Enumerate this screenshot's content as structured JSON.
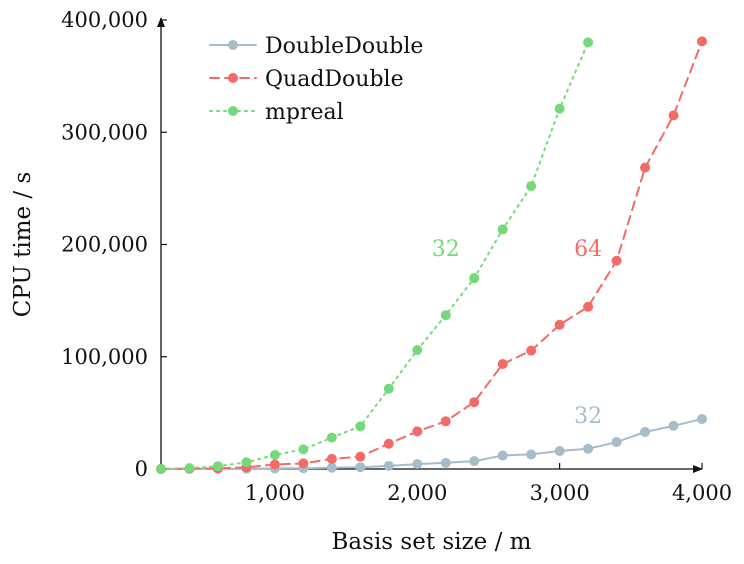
{
  "chart_data": {
    "type": "line",
    "title": "",
    "xlabel": "Basis set size / m",
    "ylabel": "CPU time / s",
    "xlim": [
      200,
      4000
    ],
    "ylim": [
      0,
      400000
    ],
    "x_ticks": [
      1000,
      2000,
      3000,
      4000
    ],
    "x_tick_labels": [
      "1,000",
      "2,000",
      "3,000",
      "4,000"
    ],
    "y_ticks": [
      0,
      100000,
      200000,
      300000,
      400000
    ],
    "y_tick_labels": [
      "0",
      "100,000",
      "200,000",
      "300,000",
      "400,000"
    ],
    "grid": false,
    "legend_position": "top-left",
    "series": [
      {
        "name": "DoubleDouble",
        "color": "#a6bdc9",
        "line_style": "solid",
        "x": [
          200,
          400,
          600,
          800,
          1000,
          1200,
          1400,
          1600,
          1800,
          2000,
          2200,
          2400,
          2600,
          2800,
          3000,
          3200,
          3400,
          3600,
          3800,
          4000
        ],
        "y": [
          0,
          100,
          200,
          300,
          500,
          700,
          1200,
          1600,
          2800,
          4400,
          5500,
          7000,
          12000,
          13000,
          16000,
          18000,
          24000,
          33000,
          38500,
          44500
        ]
      },
      {
        "name": "QuadDouble",
        "color": "#f26b66",
        "line_style": "dashed",
        "x": [
          200,
          400,
          600,
          800,
          1000,
          1200,
          1400,
          1600,
          1800,
          2000,
          2200,
          2400,
          2600,
          2800,
          3000,
          3200,
          3400,
          3600,
          3800,
          4000
        ],
        "y": [
          0,
          300,
          600,
          1500,
          4000,
          5000,
          9000,
          11000,
          22500,
          33500,
          42500,
          59500,
          93500,
          105500,
          128500,
          144500,
          185500,
          268500,
          315000,
          381000
        ]
      },
      {
        "name": "mpreal",
        "color": "#75d97a",
        "line_style": "dotted",
        "x": [
          200,
          400,
          600,
          800,
          1000,
          1200,
          1400,
          1600,
          1800,
          2000,
          2200,
          2400,
          2600,
          2800,
          3000,
          3200
        ],
        "y": [
          0,
          800,
          2500,
          6000,
          12500,
          17500,
          28000,
          38000,
          71500,
          106000,
          137000,
          170000,
          213500,
          252000,
          321000,
          380000
        ]
      }
    ],
    "annotations": [
      {
        "text": "32",
        "x": 2200,
        "y": 197000,
        "color": "#75d97a"
      },
      {
        "text": "64",
        "x": 3200,
        "y": 197000,
        "color": "#f26b66"
      },
      {
        "text": "32",
        "x": 3200,
        "y": 48000,
        "color": "#a6bdc9"
      }
    ]
  }
}
